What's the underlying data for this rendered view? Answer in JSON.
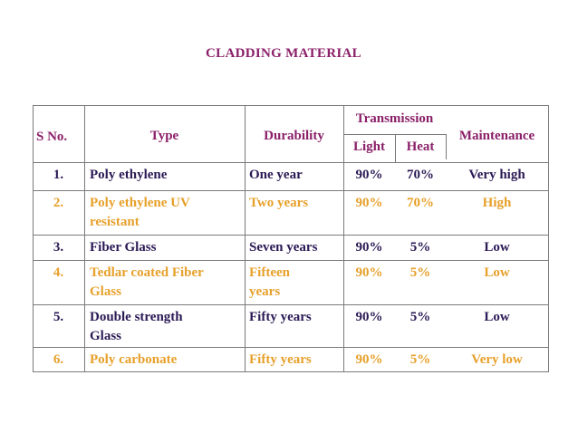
{
  "title": "CLADDING MATERIAL",
  "headers": {
    "sno": "S No.",
    "type": "Type",
    "durability": "Durability",
    "transmission": "Transmission",
    "light": "Light",
    "heat": "Heat",
    "maintenance": "Maintenance"
  },
  "rows": [
    {
      "sno": "1.",
      "type": [
        "Poly ethylene"
      ],
      "durability": [
        "One year"
      ],
      "light": "90%",
      "heat": "70%",
      "maintenance": "Very high"
    },
    {
      "sno": "2.",
      "type": [
        "Poly ethylene UV",
        "resistant"
      ],
      "durability": [
        "Two years"
      ],
      "light": "90%",
      "heat": "70%",
      "maintenance": "High"
    },
    {
      "sno": "3.",
      "type": [
        "Fiber Glass"
      ],
      "durability": [
        "Seven years"
      ],
      "light": "90%",
      "heat": "5%",
      "maintenance": "Low"
    },
    {
      "sno": "4.",
      "type": [
        "Tedlar coated Fiber",
        "Glass"
      ],
      "durability": [
        "Fifteen",
        "years"
      ],
      "light": "90%",
      "heat": "5%",
      "maintenance": "Low"
    },
    {
      "sno": "5.",
      "type": [
        "Double strength",
        "Glass"
      ],
      "durability": [
        "Fifty years"
      ],
      "light": "90%",
      "heat": "5%",
      "maintenance": "Low"
    },
    {
      "sno": "6.",
      "type": [
        "Poly carbonate"
      ],
      "durability": [
        "Fifty years"
      ],
      "light": "90%",
      "heat": "5%",
      "maintenance": "Very low"
    }
  ],
  "colors": {
    "header_text": "#8b2069",
    "odd_row_text": "#2b1a55",
    "even_row_text": "#e7a02a",
    "border": "#7a7a7a"
  }
}
